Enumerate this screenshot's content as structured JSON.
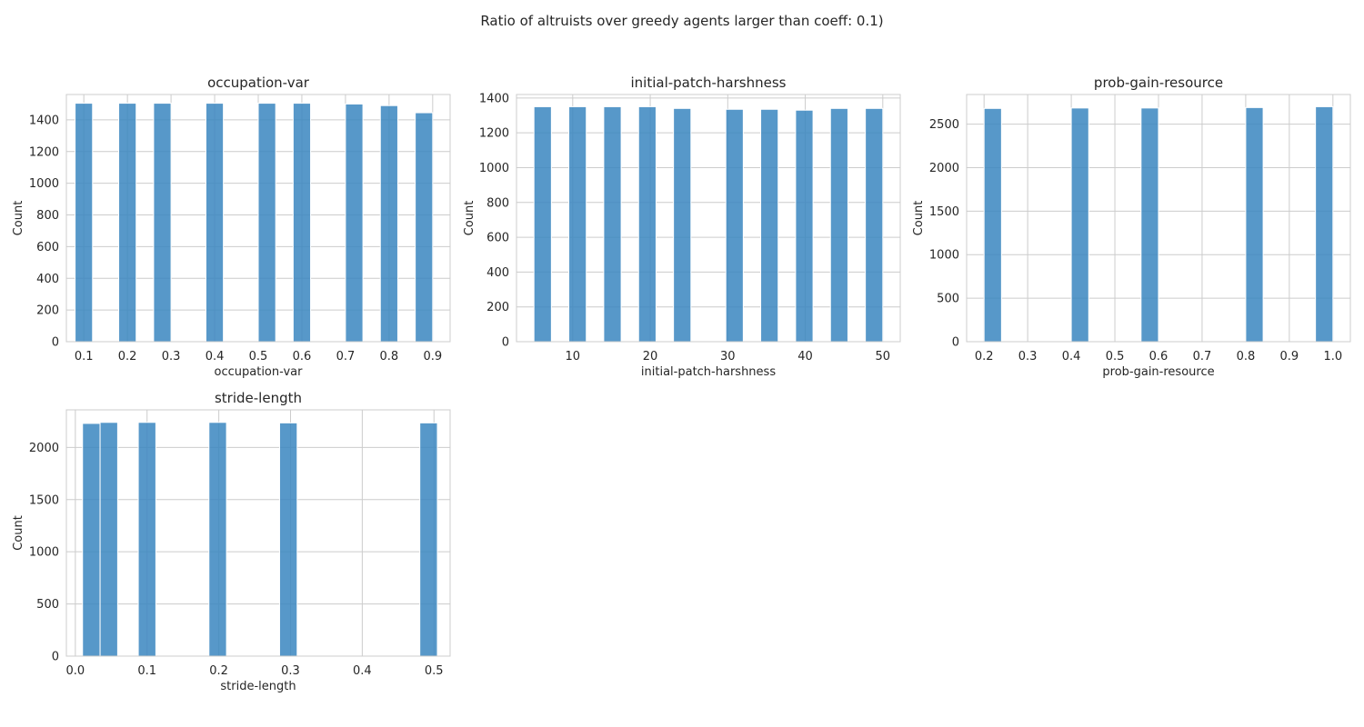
{
  "figure_title": "Ratio of altruists over greedy agents larger than coeff: 0.1)",
  "style": {
    "bar_color": "#3a86bf",
    "grid_color": "#cccccc",
    "background": "#ffffff"
  },
  "chart_data": [
    {
      "type": "bar",
      "title": "occupation-var",
      "xlabel": "occupation-var",
      "ylabel": "Count",
      "xlim": [
        0.06,
        0.94
      ],
      "ylim": [
        0,
        1560
      ],
      "xticks": [
        0.1,
        0.2,
        0.3,
        0.4,
        0.5,
        0.6,
        0.7,
        0.8,
        0.9
      ],
      "xtick_labels": [
        "0.1",
        "0.2",
        "0.3",
        "0.4",
        "0.5",
        "0.6",
        "0.7",
        "0.8",
        "0.9"
      ],
      "yticks": [
        0,
        200,
        400,
        600,
        800,
        1000,
        1200,
        1400
      ],
      "ytick_labels": [
        "0",
        "200",
        "400",
        "600",
        "800",
        "1000",
        "1200",
        "1400"
      ],
      "grid": true,
      "bin_width": 0.04,
      "bars": [
        {
          "center": 0.1,
          "value": 1505
        },
        {
          "center": 0.2,
          "value": 1505
        },
        {
          "center": 0.28,
          "value": 1505
        },
        {
          "center": 0.4,
          "value": 1505
        },
        {
          "center": 0.52,
          "value": 1505
        },
        {
          "center": 0.6,
          "value": 1505
        },
        {
          "center": 0.72,
          "value": 1500
        },
        {
          "center": 0.8,
          "value": 1490
        },
        {
          "center": 0.88,
          "value": 1445
        }
      ]
    },
    {
      "type": "bar",
      "title": "initial-patch-harshness",
      "xlabel": "initial-patch-harshness",
      "ylabel": "Count",
      "xlim": [
        2.75,
        52.25
      ],
      "ylim": [
        0,
        1420
      ],
      "xticks": [
        10,
        20,
        30,
        40,
        50
      ],
      "xtick_labels": [
        "10",
        "20",
        "30",
        "40",
        "50"
      ],
      "yticks": [
        0,
        200,
        400,
        600,
        800,
        1000,
        1200,
        1400
      ],
      "ytick_labels": [
        "0",
        "200",
        "400",
        "600",
        "800",
        "1000",
        "1200",
        "1400"
      ],
      "grid": true,
      "bin_width": 2.25,
      "bars": [
        {
          "center": 6.125,
          "value": 1350
        },
        {
          "center": 10.625,
          "value": 1350
        },
        {
          "center": 15.125,
          "value": 1350
        },
        {
          "center": 19.625,
          "value": 1350
        },
        {
          "center": 24.125,
          "value": 1340
        },
        {
          "center": 30.875,
          "value": 1335
        },
        {
          "center": 35.375,
          "value": 1335
        },
        {
          "center": 39.875,
          "value": 1330
        },
        {
          "center": 44.375,
          "value": 1340
        },
        {
          "center": 48.875,
          "value": 1340
        }
      ]
    },
    {
      "type": "bar",
      "title": "prob-gain-resource",
      "xlabel": "prob-gain-resource",
      "ylabel": "Count",
      "xlim": [
        0.16,
        1.04
      ],
      "ylim": [
        0,
        2840
      ],
      "xticks": [
        0.2,
        0.3,
        0.4,
        0.5,
        0.6,
        0.7,
        0.8,
        0.9,
        1.0
      ],
      "xtick_labels": [
        "0.2",
        "0.3",
        "0.4",
        "0.5",
        "0.6",
        "0.7",
        "0.8",
        "0.9",
        "1.0"
      ],
      "yticks": [
        0,
        500,
        1000,
        1500,
        2000,
        2500
      ],
      "ytick_labels": [
        "0",
        "500",
        "1000",
        "1500",
        "2000",
        "2500"
      ],
      "grid": true,
      "bin_width": 0.04,
      "bars": [
        {
          "center": 0.22,
          "value": 2680
        },
        {
          "center": 0.42,
          "value": 2685
        },
        {
          "center": 0.58,
          "value": 2685
        },
        {
          "center": 0.82,
          "value": 2690
        },
        {
          "center": 0.98,
          "value": 2700
        }
      ]
    },
    {
      "type": "bar",
      "title": "stride-length",
      "xlabel": "stride-length",
      "ylabel": "Count",
      "xlim": [
        -0.0125,
        0.5225
      ],
      "ylim": [
        0,
        2360
      ],
      "xticks": [
        0.0,
        0.1,
        0.2,
        0.3,
        0.4,
        0.5
      ],
      "xtick_labels": [
        "0.0",
        "0.1",
        "0.2",
        "0.3",
        "0.4",
        "0.5"
      ],
      "yticks": [
        0,
        500,
        1000,
        1500,
        2000
      ],
      "ytick_labels": [
        "0",
        "500",
        "1000",
        "1500",
        "2000"
      ],
      "grid": true,
      "bin_width": 0.0245,
      "bars": [
        {
          "center": 0.02225,
          "value": 2230
        },
        {
          "center": 0.04675,
          "value": 2240
        },
        {
          "center": 0.1,
          "value": 2240
        },
        {
          "center": 0.1985,
          "value": 2240
        },
        {
          "center": 0.297,
          "value": 2235
        },
        {
          "center": 0.4925,
          "value": 2235
        }
      ]
    }
  ]
}
